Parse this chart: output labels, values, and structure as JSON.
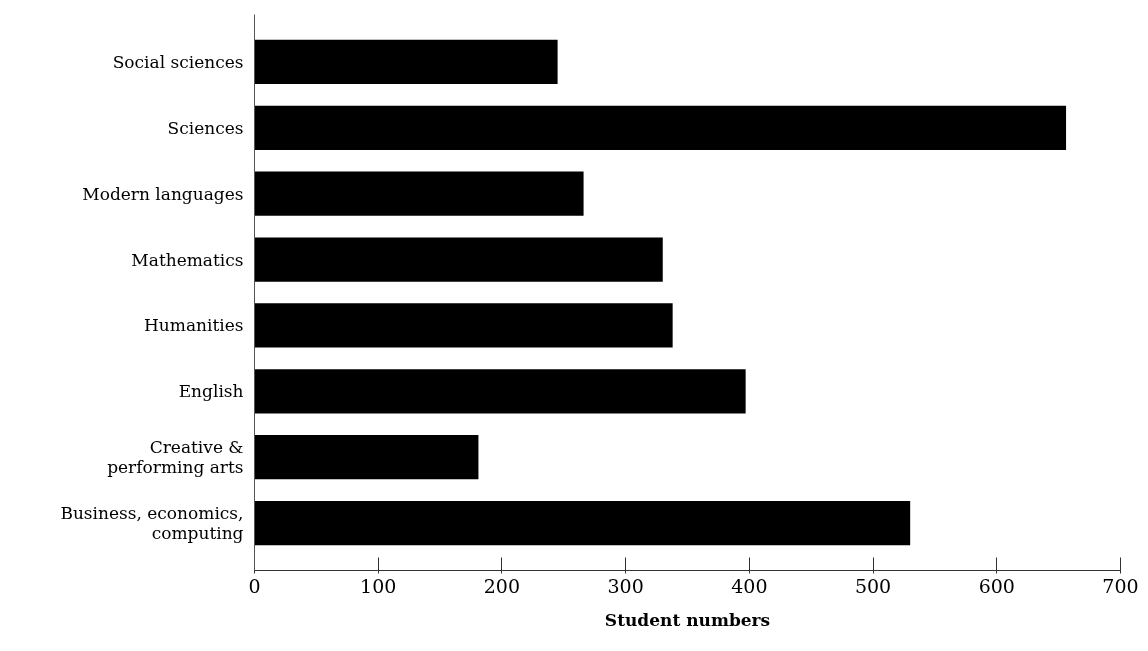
{
  "chart_data": {
    "type": "bar",
    "orientation": "horizontal",
    "xlabel": "Student numbers",
    "categories": [
      "Social sciences",
      "Sciences",
      "Modern languages",
      "Mathematics",
      "Humanities",
      "English",
      "Creative & performing arts",
      "Business, economics, computing"
    ],
    "values": [
      245,
      656,
      266,
      330,
      338,
      397,
      181,
      530
    ],
    "color": "#000000",
    "xlim": [
      0,
      700
    ],
    "xticks": [
      0,
      100,
      200,
      300,
      400,
      500,
      600,
      700
    ],
    "grid": false
  }
}
